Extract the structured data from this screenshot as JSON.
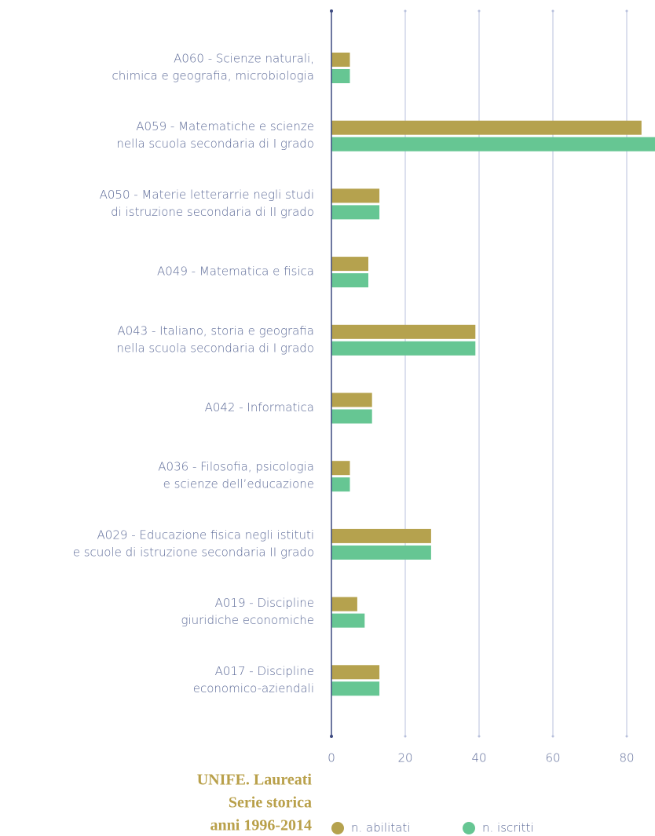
{
  "chart_data": {
    "type": "bar",
    "orientation": "horizontal",
    "title": [
      "UNIFE. Laureati",
      "Serie storica",
      "anni 1996-2014"
    ],
    "categories": [
      [
        "A060 - Scienze naturali,",
        "chimica e geografia, microbiologia"
      ],
      [
        "A059 - Matematiche e scienze",
        "nella scuola secondaria di I grado"
      ],
      [
        "A050 - Materie letterarrie negli studi",
        "di istruzione secondaria di II grado"
      ],
      [
        "A049 - Matematica e fisica"
      ],
      [
        "A043 - Italiano, storia e geografia",
        "nella scuola secondaria di I grado"
      ],
      [
        "A042 - Informatica"
      ],
      [
        "A036 - Filosofia, psicologia",
        "e scienze dell’educazione"
      ],
      [
        "A029 - Educazione fisica negli istituti",
        "e scuole di istruzione secondaria II grado"
      ],
      [
        "A019 - Discipline",
        "giuridiche economiche"
      ],
      [
        "A017 - Discipline",
        "economico-aziendali"
      ]
    ],
    "series": [
      {
        "name": "n. abilitati",
        "color": "#b5a24e",
        "values": [
          5,
          84,
          13,
          10,
          39,
          11,
          5,
          27,
          7,
          13
        ]
      },
      {
        "name": "n. iscritti",
        "color": "#66c693",
        "values": [
          5,
          90,
          13,
          10,
          39,
          11,
          5,
          27,
          9,
          13
        ]
      }
    ],
    "xlim": [
      0,
      88
    ],
    "xticks": [
      0,
      20,
      40,
      60,
      80
    ],
    "grid": true
  }
}
